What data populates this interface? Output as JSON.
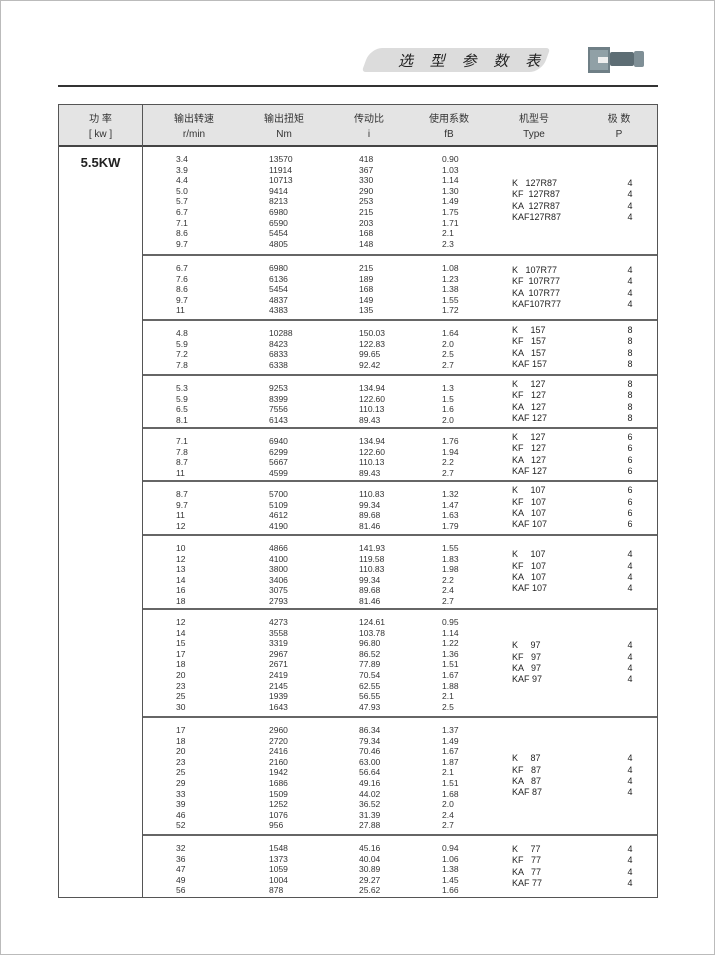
{
  "header": {
    "title": "选 型 参 数 表",
    "product_icon": "gear-motor-image"
  },
  "columns": [
    {
      "cn": "功 率",
      "unit": "[ kw ]"
    },
    {
      "cn": "输出转速",
      "unit": "r/min"
    },
    {
      "cn": "输出扭矩",
      "unit": "Nm"
    },
    {
      "cn": "传动比",
      "unit": "i"
    },
    {
      "cn": "使用系数",
      "unit": "fB"
    },
    {
      "cn": "机型号",
      "unit": "Type"
    },
    {
      "cn": "极 数",
      "unit": "P"
    }
  ],
  "power": "5.5KW",
  "groups": [
    {
      "rows": [
        [
          "3.4",
          "13570",
          "418",
          "0.90"
        ],
        [
          "3.9",
          "11914",
          "367",
          "1.03"
        ],
        [
          "4.4",
          "10713",
          "330",
          "1.14"
        ],
        [
          "5.0",
          "9414",
          "290",
          "1.30"
        ],
        [
          "5.7",
          "8213",
          "253",
          "1.49"
        ],
        [
          "6.7",
          "6980",
          "215",
          "1.75"
        ],
        [
          "7.1",
          "6590",
          "203",
          "1.71"
        ],
        [
          "8.6",
          "5454",
          "168",
          "2.1"
        ],
        [
          "9.7",
          "4805",
          "148",
          "2.3"
        ]
      ],
      "types": [
        [
          "K   127R87",
          "4"
        ],
        [
          "KF  127R87",
          "4"
        ],
        [
          "KA  127R87",
          "4"
        ],
        [
          "KAF127R87",
          "4"
        ]
      ]
    },
    {
      "rows": [
        [
          "6.7",
          "6980",
          "215",
          "1.08"
        ],
        [
          "7.6",
          "6136",
          "189",
          "1.23"
        ],
        [
          "8.6",
          "5454",
          "168",
          "1.38"
        ],
        [
          "9.7",
          "4837",
          "149",
          "1.55"
        ],
        [
          "11",
          "4383",
          "135",
          "1.72"
        ]
      ],
      "types": [
        [
          "K   107R77",
          "4"
        ],
        [
          "KF  107R77",
          "4"
        ],
        [
          "KA  107R77",
          "4"
        ],
        [
          "KAF107R77",
          "4"
        ]
      ]
    },
    {
      "rows": [
        [
          "4.8",
          "10288",
          "150.03",
          "1.64"
        ],
        [
          "5.9",
          "8423",
          "122.83",
          "2.0"
        ],
        [
          "7.2",
          "6833",
          "99.65",
          "2.5"
        ],
        [
          "7.8",
          "6338",
          "92.42",
          "2.7"
        ]
      ],
      "types": [
        [
          "K     157",
          "8"
        ],
        [
          "KF   157",
          "8"
        ],
        [
          "KA   157",
          "8"
        ],
        [
          "KAF 157",
          "8"
        ]
      ]
    },
    {
      "rows": [
        [
          "5.3",
          "9253",
          "134.94",
          "1.3"
        ],
        [
          "5.9",
          "8399",
          "122.60",
          "1.5"
        ],
        [
          "6.5",
          "7556",
          "110.13",
          "1.6"
        ],
        [
          "8.1",
          "6143",
          "89.43",
          "2.0"
        ]
      ],
      "types": [
        [
          "K     127",
          "8"
        ],
        [
          "KF   127",
          "8"
        ],
        [
          "KA   127",
          "8"
        ],
        [
          "KAF 127",
          "8"
        ]
      ]
    },
    {
      "rows": [
        [
          "7.1",
          "6940",
          "134.94",
          "1.76"
        ],
        [
          "7.8",
          "6299",
          "122.60",
          "1.94"
        ],
        [
          "8.7",
          "5667",
          "110.13",
          "2.2"
        ],
        [
          "11",
          "4599",
          "89.43",
          "2.7"
        ]
      ],
      "types": [
        [
          "K     127",
          "6"
        ],
        [
          "KF   127",
          "6"
        ],
        [
          "KA   127",
          "6"
        ],
        [
          "KAF 127",
          "6"
        ]
      ]
    },
    {
      "rows": [
        [
          "8.7",
          "5700",
          "110.83",
          "1.32"
        ],
        [
          "9.7",
          "5109",
          "99.34",
          "1.47"
        ],
        [
          "11",
          "4612",
          "89.68",
          "1.63"
        ],
        [
          "12",
          "4190",
          "81.46",
          "1.79"
        ]
      ],
      "types": [
        [
          "K     107",
          "6"
        ],
        [
          "KF   107",
          "6"
        ],
        [
          "KA   107",
          "6"
        ],
        [
          "KAF 107",
          "6"
        ]
      ]
    },
    {
      "rows": [
        [
          "10",
          "4866",
          "141.93",
          "1.55"
        ],
        [
          "12",
          "4100",
          "119.58",
          "1.83"
        ],
        [
          "13",
          "3800",
          "110.83",
          "1.98"
        ],
        [
          "14",
          "3406",
          "99.34",
          "2.2"
        ],
        [
          "16",
          "3075",
          "89.68",
          "2.4"
        ],
        [
          "18",
          "2793",
          "81.46",
          "2.7"
        ]
      ],
      "types": [
        [
          "K     107",
          "4"
        ],
        [
          "KF   107",
          "4"
        ],
        [
          "KA   107",
          "4"
        ],
        [
          "KAF 107",
          "4"
        ]
      ]
    },
    {
      "rows": [
        [
          "12",
          "4273",
          "124.61",
          "0.95"
        ],
        [
          "14",
          "3558",
          "103.78",
          "1.14"
        ],
        [
          "15",
          "3319",
          "96.80",
          "1.22"
        ],
        [
          "17",
          "2967",
          "86.52",
          "1.36"
        ],
        [
          "18",
          "2671",
          "77.89",
          "1.51"
        ],
        [
          "20",
          "2419",
          "70.54",
          "1.67"
        ],
        [
          "23",
          "2145",
          "62.55",
          "1.88"
        ],
        [
          "25",
          "1939",
          "56.55",
          "2.1"
        ],
        [
          "30",
          "1643",
          "47.93",
          "2.5"
        ]
      ],
      "types": [
        [
          "K     97",
          "4"
        ],
        [
          "KF   97",
          "4"
        ],
        [
          "KA   97",
          "4"
        ],
        [
          "KAF 97",
          "4"
        ]
      ]
    },
    {
      "rows": [
        [
          "17",
          "2960",
          "86.34",
          "1.37"
        ],
        [
          "18",
          "2720",
          "79.34",
          "1.49"
        ],
        [
          "20",
          "2416",
          "70.46",
          "1.67"
        ],
        [
          "23",
          "2160",
          "63.00",
          "1.87"
        ],
        [
          "25",
          "1942",
          "56.64",
          "2.1"
        ],
        [
          "29",
          "1686",
          "49.16",
          "1.51"
        ],
        [
          "33",
          "1509",
          "44.02",
          "1.68"
        ],
        [
          "39",
          "1252",
          "36.52",
          "2.0"
        ],
        [
          "46",
          "1076",
          "31.39",
          "2.4"
        ],
        [
          "52",
          "956",
          "27.88",
          "2.7"
        ]
      ],
      "types": [
        [
          "K     87",
          "4"
        ],
        [
          "KF   87",
          "4"
        ],
        [
          "KA   87",
          "4"
        ],
        [
          "KAF 87",
          "4"
        ]
      ]
    },
    {
      "rows": [
        [
          "32",
          "1548",
          "45.16",
          "0.94"
        ],
        [
          "36",
          "1373",
          "40.04",
          "1.06"
        ],
        [
          "47",
          "1059",
          "30.89",
          "1.38"
        ],
        [
          "49",
          "1004",
          "29.27",
          "1.45"
        ],
        [
          "56",
          "878",
          "25.62",
          "1.66"
        ]
      ],
      "types": [
        [
          "K     77",
          "4"
        ],
        [
          "KF   77",
          "4"
        ],
        [
          "KA   77",
          "4"
        ],
        [
          "KAF 77",
          "4"
        ]
      ]
    }
  ]
}
